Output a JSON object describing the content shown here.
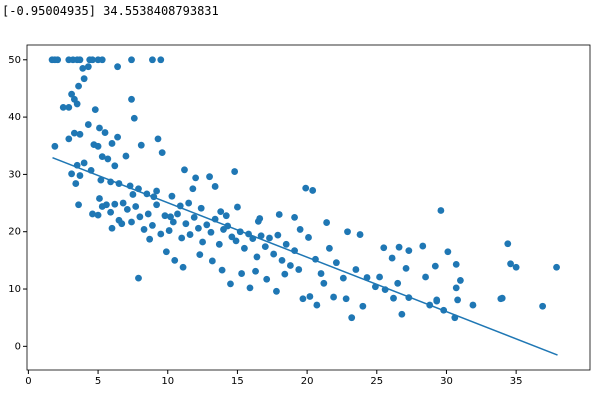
{
  "output_text": "[-0.95004935] 34.5538408793831",
  "chart_data": {
    "type": "scatter",
    "xlim": [
      -0.1,
      40.3
    ],
    "ylim": [
      -4.13,
      52.58
    ],
    "xticks": [
      0,
      5,
      10,
      15,
      20,
      25,
      30,
      35
    ],
    "yticks": [
      0,
      10,
      20,
      30,
      40,
      50
    ],
    "series": [
      {
        "type": "scatter",
        "color": "#1f77b4",
        "x": [
          1.7,
          1.9,
          2.1,
          2.9,
          3.2,
          3.5,
          3.7,
          4.4,
          4.6,
          5.0,
          5.3,
          7.4,
          8.9,
          9.5,
          2.9,
          3.1,
          3.3,
          3.5,
          3.9,
          4.0,
          3.6,
          4.3,
          4.8,
          6.4,
          7.4,
          7.6,
          2.5,
          1.9,
          2.9,
          3.3,
          3.7,
          4.3,
          5.1,
          5.5,
          6.0,
          6.4,
          9.3,
          9.6,
          8.1,
          7.0,
          4.7,
          5.0,
          5.3,
          5.7,
          6.2,
          4.0,
          3.5,
          3.1,
          3.7,
          3.4,
          4.5,
          5.2,
          5.9,
          6.5,
          7.3,
          7.9,
          8.5,
          9.2,
          10.3,
          11.2,
          12.0,
          13.0,
          14.8,
          13.4,
          11.8,
          3.6,
          4.6,
          5.0,
          5.3,
          5.6,
          5.9,
          6.2,
          6.5,
          6.8,
          7.1,
          7.4,
          7.7,
          8.0,
          8.3,
          8.6,
          8.9,
          9.2,
          9.5,
          9.8,
          10.1,
          10.4,
          10.7,
          11.0,
          11.3,
          11.6,
          11.9,
          12.2,
          12.5,
          12.8,
          13.1,
          13.4,
          13.7,
          14.0,
          14.3,
          14.6,
          14.9,
          15.2,
          15.5,
          15.8,
          16.1,
          16.4,
          16.7,
          17.0,
          17.3,
          17.6,
          17.9,
          18.2,
          18.5,
          18.8,
          19.1,
          19.4,
          6.0,
          7.5,
          5.1,
          6.7,
          8.7,
          9.9,
          10.5,
          11.1,
          12.3,
          13.2,
          13.9,
          15.3,
          16.3,
          7.9,
          14.5,
          15.9,
          17.1,
          17.8,
          18.4,
          19.7,
          20.2,
          20.7,
          21.2,
          21.9,
          22.8,
          23.2,
          24.0,
          24.3,
          24.9,
          25.6,
          26.2,
          26.8,
          27.3,
          28.8,
          29.3,
          29.8,
          30.6,
          30.8,
          31.9,
          34.0,
          36.9,
          20.4,
          19.9,
          18.0,
          16.6,
          19.1,
          21.4,
          22.9,
          23.8,
          25.5,
          26.6,
          27.3,
          28.3,
          29.6,
          30.1,
          30.7,
          29.2,
          28.5,
          27.1,
          26.1,
          25.2,
          23.5,
          22.1,
          21.6,
          20.6,
          20.1,
          19.5,
          21.0,
          22.6,
          31.0,
          34.4,
          34.6,
          35.0,
          37.9,
          33.9,
          30.7,
          29.3,
          26.5,
          11.5,
          12.4,
          13.8,
          14.2,
          15.0,
          16.5,
          9.0,
          10.9,
          10.2
        ],
        "values": [
          50,
          50,
          50,
          50,
          50,
          50,
          50,
          50,
          50,
          50,
          50,
          50,
          50,
          50,
          41.7,
          44,
          43.1,
          42.3,
          48.5,
          46.7,
          45.4,
          48.8,
          41.3,
          48.8,
          43.1,
          39.8,
          41.7,
          34.9,
          36.2,
          37.2,
          37.0,
          38.7,
          38.1,
          37.3,
          35.4,
          36.5,
          36.2,
          33.8,
          35.1,
          33.2,
          35.2,
          34.9,
          33.1,
          32.7,
          31.5,
          32.0,
          31.6,
          30.1,
          29.8,
          28.4,
          30.7,
          29.0,
          28.7,
          28.4,
          28.0,
          27.5,
          26.6,
          27.1,
          26.2,
          30.8,
          29.4,
          29.6,
          30.5,
          27.9,
          27.5,
          24.7,
          23.1,
          22.9,
          24.4,
          24.7,
          23.4,
          24.8,
          22.0,
          25.0,
          23.9,
          21.7,
          24.4,
          22.6,
          20.4,
          23.1,
          21.1,
          24.7,
          19.6,
          22.8,
          20.2,
          21.7,
          23.1,
          18.9,
          21.4,
          19.5,
          22.5,
          20.6,
          18.2,
          21.2,
          19.9,
          22.2,
          17.8,
          20.4,
          21.0,
          19.1,
          18.4,
          20.0,
          17.1,
          19.6,
          18.8,
          15.6,
          19.3,
          17.4,
          18.9,
          16.1,
          19.4,
          15.0,
          17.8,
          14.1,
          16.7,
          13.4,
          20.6,
          26.5,
          25.8,
          21.4,
          18.7,
          16.5,
          15.0,
          13.8,
          16.0,
          14.9,
          13.3,
          12.7,
          13.1,
          11.9,
          10.9,
          10.2,
          11.7,
          9.6,
          12.6,
          8.3,
          8.7,
          7.2,
          11.0,
          8.6,
          8.3,
          5.0,
          7.0,
          12.0,
          10.4,
          9.9,
          8.4,
          5.6,
          8.5,
          7.2,
          7.9,
          6.3,
          5.0,
          8.1,
          7.2,
          8.4,
          7.0,
          27.2,
          27.6,
          23.0,
          22.3,
          22.5,
          21.6,
          20.0,
          19.5,
          17.2,
          17.3,
          16.7,
          17.5,
          23.7,
          16.5,
          14.3,
          14.0,
          12.1,
          13.6,
          15.4,
          12.1,
          13.4,
          14.6,
          17.1,
          15.2,
          19.0,
          20.4,
          12.7,
          11.9,
          11.5,
          17.9,
          14.4,
          13.8,
          13.8,
          8.3,
          10.2,
          8.1,
          11.0,
          25.0,
          24.1,
          23.5,
          22.8,
          24.3,
          21.8,
          26.1,
          24.5,
          22.6
        ]
      },
      {
        "type": "line",
        "color": "#1f77b4",
        "x": [
          1.73,
          37.97
        ],
        "values": [
          32.91,
          -1.52
        ]
      }
    ]
  }
}
